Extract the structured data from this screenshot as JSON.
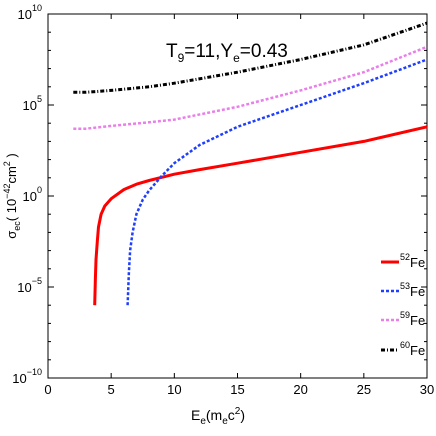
{
  "chart_data": {
    "type": "line",
    "annotation": {
      "T": "T",
      "T_sub": "9",
      "T_value": "=11,",
      "Y": "Y",
      "Y_sub": "e",
      "Y_value": "=0.43"
    },
    "xlabel": {
      "main": "E",
      "sub1": "e",
      "mid": "(m",
      "sub2": "e",
      "tail": "c",
      "sup": "2",
      "close": ")"
    },
    "ylabel": {
      "main": "σ",
      "sub": "ec",
      "paren": "( 10",
      "sup": "−42",
      "unit": "cm",
      "unit_sup": "2",
      "close": " )"
    },
    "xlim": [
      0,
      30
    ],
    "ylim_log10": [
      -10,
      10
    ],
    "x_ticks": [
      0,
      5,
      10,
      15,
      20,
      25,
      30
    ],
    "x_tick_labels": [
      "0",
      "5",
      "10",
      "15",
      "20",
      "25",
      "30"
    ],
    "y_ticks_log10": [
      -10,
      -5,
      0,
      5,
      10
    ],
    "y_tick_labels": [
      {
        "base": "10",
        "exp": "−10"
      },
      {
        "base": "10",
        "exp": "−5"
      },
      {
        "base": "10",
        "exp": "0"
      },
      {
        "base": "10",
        "exp": "5"
      },
      {
        "base": "10",
        "exp": "10"
      }
    ],
    "legend_position": "bottom-right",
    "series": [
      {
        "name": "52Fe",
        "mass": "52",
        "element": "Fe",
        "color": "#ff0000",
        "style": "solid",
        "points": [
          [
            3.7,
            -6
          ],
          [
            3.75,
            -4.5
          ],
          [
            3.8,
            -3.5
          ],
          [
            3.9,
            -2.5
          ],
          [
            4.0,
            -1.7
          ],
          [
            4.2,
            -1.0
          ],
          [
            4.5,
            -0.55
          ],
          [
            5,
            -0.15
          ],
          [
            6,
            0.35
          ],
          [
            7,
            0.65
          ],
          [
            8,
            0.85
          ],
          [
            10,
            1.2
          ],
          [
            12,
            1.45
          ],
          [
            15,
            1.8
          ],
          [
            20,
            2.4
          ],
          [
            25,
            3.0
          ],
          [
            30,
            3.8
          ]
        ]
      },
      {
        "name": "53Fe",
        "mass": "53",
        "element": "Fe",
        "color": "#1f3fff",
        "style": "dotted",
        "points": [
          [
            6.3,
            -6
          ],
          [
            6.4,
            -4.2
          ],
          [
            6.5,
            -3.0
          ],
          [
            6.7,
            -2.0
          ],
          [
            7.0,
            -1.0
          ],
          [
            7.5,
            -0.2
          ],
          [
            8,
            0.3
          ],
          [
            9,
            1.1
          ],
          [
            10,
            1.8
          ],
          [
            12,
            2.8
          ],
          [
            15,
            3.8
          ],
          [
            20,
            5.0
          ],
          [
            25,
            6.2
          ],
          [
            30,
            7.5
          ]
        ]
      },
      {
        "name": "59Fe",
        "mass": "59",
        "element": "Fe",
        "color": "#e97fe9",
        "style": "dotted",
        "points": [
          [
            2,
            3.7
          ],
          [
            3,
            3.7
          ],
          [
            5,
            3.85
          ],
          [
            8,
            4.05
          ],
          [
            10,
            4.2
          ],
          [
            15,
            4.9
          ],
          [
            20,
            5.8
          ],
          [
            25,
            6.8
          ],
          [
            30,
            8.2
          ]
        ]
      },
      {
        "name": "60Fe",
        "mass": "60",
        "element": "Fe",
        "color": "#000000",
        "style": "dashdot",
        "points": [
          [
            2,
            5.7
          ],
          [
            3,
            5.7
          ],
          [
            5,
            5.8
          ],
          [
            8,
            6.0
          ],
          [
            10,
            6.2
          ],
          [
            15,
            6.8
          ],
          [
            20,
            7.5
          ],
          [
            25,
            8.3
          ],
          [
            30,
            9.5
          ]
        ]
      }
    ]
  }
}
